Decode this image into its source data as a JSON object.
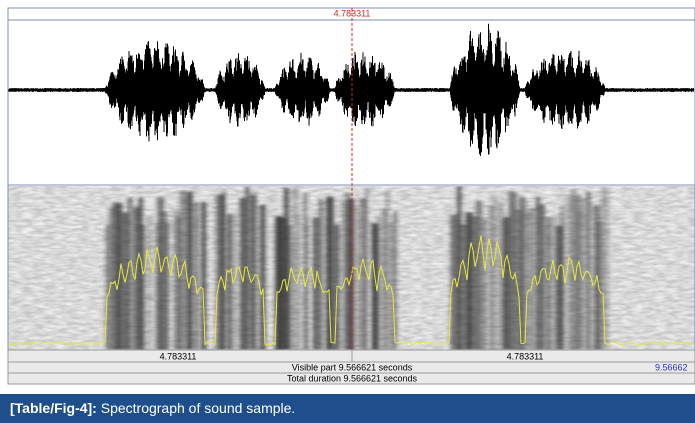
{
  "editor": {
    "cursor_time_top": "4.783311",
    "left_half_time": "4.783311",
    "right_half_time": "4.783311",
    "visible_part": "Visible part 9.566621 seconds",
    "visible_end": "9.56662",
    "total_duration": "Total duration 9.566621 seconds"
  },
  "caption": {
    "label": "[Table/Fig-4]:",
    "text": "Spectrograph of sound sample."
  }
}
